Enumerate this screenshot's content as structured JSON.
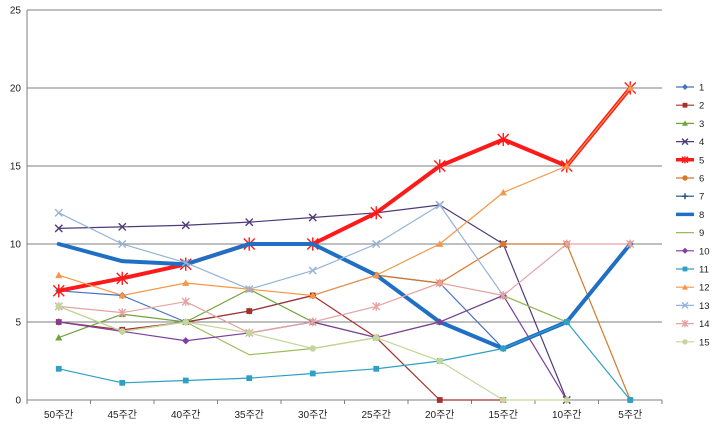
{
  "chart_data": {
    "type": "line",
    "categories": [
      "50주간",
      "45주간",
      "40주간",
      "35주간",
      "30주간",
      "25주간",
      "20주간",
      "15주간",
      "10주간",
      "5주간"
    ],
    "ylim": [
      0,
      25
    ],
    "yticks": [
      "0",
      "5",
      "10",
      "15",
      "20",
      "25"
    ],
    "grid": true,
    "legend_position": "right",
    "series": [
      {
        "name": "1",
        "color": "#4472c4",
        "marker": "diamond",
        "width": 1.2,
        "values": [
          7.0,
          6.7,
          5.0,
          5.7,
          6.7,
          8.0,
          7.5,
          3.3,
          5.0,
          10.0
        ]
      },
      {
        "name": "2",
        "color": "#a5302b",
        "marker": "square",
        "width": 1.2,
        "values": [
          5.0,
          4.5,
          5.0,
          5.7,
          6.7,
          4.0,
          0.0,
          0.0,
          null,
          null
        ]
      },
      {
        "name": "3",
        "color": "#70a33b",
        "marker": "triangle",
        "width": 1.2,
        "values": [
          4.0,
          5.5,
          5.0,
          7.1,
          5.0,
          4.0,
          5.0,
          6.7,
          5.0,
          null
        ]
      },
      {
        "name": "4",
        "color": "#4f3a7a",
        "marker": "x",
        "width": 1.2,
        "values": [
          11.0,
          11.1,
          11.2,
          11.4,
          11.7,
          12.0,
          12.5,
          10.0,
          0.0,
          null
        ]
      },
      {
        "name": "5",
        "color": "#ff1a1a",
        "marker": "star",
        "width": 4,
        "values": [
          7.0,
          7.8,
          8.7,
          10.0,
          10.0,
          12.0,
          15.0,
          16.7,
          15.0,
          20.0
        ]
      },
      {
        "name": "6",
        "color": "#d8782a",
        "marker": "circle",
        "width": 1.2,
        "values": [
          null,
          null,
          null,
          null,
          null,
          8.0,
          7.5,
          10.0,
          10.0,
          0.0
        ]
      },
      {
        "name": "7",
        "color": "#1f4e79",
        "marker": "plus",
        "width": 1.2,
        "values": [
          null,
          null,
          null,
          null,
          null,
          null,
          null,
          null,
          null,
          null
        ]
      },
      {
        "name": "8",
        "color": "#1f6fc4",
        "marker": "none",
        "width": 4,
        "values": [
          10.0,
          8.9,
          8.7,
          10.0,
          10.0,
          8.0,
          5.0,
          3.3,
          5.0,
          10.0
        ]
      },
      {
        "name": "9",
        "color": "#9bbb59",
        "marker": "none",
        "width": 1.2,
        "values": [
          6.0,
          4.4,
          5.0,
          2.9,
          3.3,
          4.0,
          5.0,
          6.7,
          5.0,
          null
        ]
      },
      {
        "name": "10",
        "color": "#7e3fa0",
        "marker": "diamond",
        "width": 1.2,
        "values": [
          5.0,
          4.4,
          3.8,
          4.3,
          5.0,
          4.0,
          5.0,
          6.7,
          0.0,
          null
        ]
      },
      {
        "name": "11",
        "color": "#2ea0c4",
        "marker": "square",
        "width": 1.2,
        "values": [
          2.0,
          1.1,
          1.25,
          1.4,
          1.7,
          2.0,
          2.5,
          3.3,
          5.0,
          0.0
        ]
      },
      {
        "name": "12",
        "color": "#f79646",
        "marker": "triangle",
        "width": 1.2,
        "values": [
          8.0,
          6.7,
          7.5,
          7.1,
          6.7,
          8.0,
          10.0,
          13.3,
          15.0,
          20.0
        ]
      },
      {
        "name": "13",
        "color": "#95b3d7",
        "marker": "x",
        "width": 1.2,
        "values": [
          12.0,
          10.0,
          8.8,
          7.1,
          8.3,
          10.0,
          12.5,
          6.7,
          null,
          null
        ]
      },
      {
        "name": "14",
        "color": "#e6a3a3",
        "marker": "star",
        "width": 1.2,
        "values": [
          6.0,
          5.6,
          6.3,
          4.3,
          5.0,
          6.0,
          7.5,
          6.7,
          10.0,
          10.0
        ]
      },
      {
        "name": "15",
        "color": "#c4d79b",
        "marker": "circle",
        "width": 1.2,
        "values": [
          6.0,
          4.4,
          5.0,
          4.3,
          3.3,
          4.0,
          2.5,
          0.0,
          0.0,
          null
        ]
      }
    ]
  }
}
